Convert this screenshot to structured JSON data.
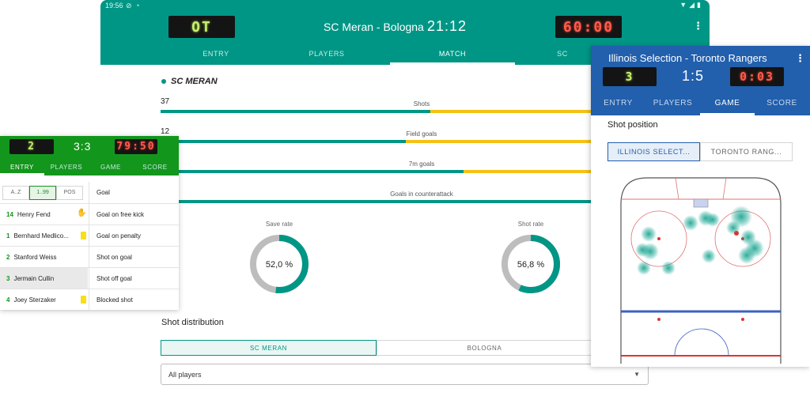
{
  "main": {
    "status_time": "19:56",
    "status_icons": [
      "do-not-disturb-icon",
      "sync-icon"
    ],
    "status_right": "▼◢▮",
    "home_score": "OT",
    "away_clock": "60:00",
    "title": "SC Meran - Bologna",
    "score": "21:12",
    "tabs": [
      "ENTRY",
      "PLAYERS",
      "MATCH",
      "SC"
    ],
    "active_tab": "MATCH",
    "team": "SC MERAN",
    "stats": [
      {
        "value": "37",
        "label": "Shots",
        "home_fraction": 0.516
      },
      {
        "value": "12",
        "label": "Field goals",
        "home_fraction": 0.47
      },
      {
        "value": "",
        "label": "7m goals",
        "home_fraction": 0.58
      },
      {
        "value": "",
        "label": "Goals in counterattack",
        "home_fraction": 0.99
      }
    ],
    "save_rate": {
      "label": "Save rate",
      "value": "52,0 %",
      "fraction": 0.52
    },
    "shot_rate": {
      "label": "Shot rate",
      "value": "56,8 %",
      "fraction": 0.568
    },
    "distribution_title": "Shot distribution",
    "distribution_tabs": [
      "SC MERAN",
      "BOLOGNA"
    ],
    "player_select": "All players",
    "colors": {
      "primary": "#009685",
      "secondary": "#f5c116"
    }
  },
  "left": {
    "score": "2",
    "period": "3:3",
    "clock": "79:50",
    "tabs": [
      "ENTRY",
      "PLAYERS",
      "GAME",
      "SCORE"
    ],
    "active_tab": "ENTRY",
    "sort_options": [
      "A..Z",
      "1..99",
      "POS"
    ],
    "active_sort": "1..99",
    "players": [
      {
        "number": "14",
        "name": "Henry Fend"
      },
      {
        "number": "1",
        "name": "Bernhard Medlico..."
      },
      {
        "number": "2",
        "name": "Stanford Weiss"
      },
      {
        "number": "3",
        "name": "Jermain Cullin"
      },
      {
        "number": "4",
        "name": "Joey Sterzaker"
      }
    ],
    "actions": [
      "Goal",
      "Goal on free kick",
      "Goal on penalty",
      "Shot on goal",
      "Shot off goal",
      "Blocked shot"
    ],
    "colors": {
      "primary": "#13961c"
    }
  },
  "right": {
    "title": "Illinois Selection - Toronto Rangers",
    "home_score": "3",
    "score": "1:5",
    "clock": "0:03",
    "tabs": [
      "ENTRY",
      "PLAYERS",
      "GAME",
      "SCORE"
    ],
    "active_tab": "GAME",
    "section": "Shot position",
    "team_tabs": [
      "ILLINOIS SELECT...",
      "TORONTO RANG..."
    ],
    "colors": {
      "primary": "#225fac"
    }
  }
}
